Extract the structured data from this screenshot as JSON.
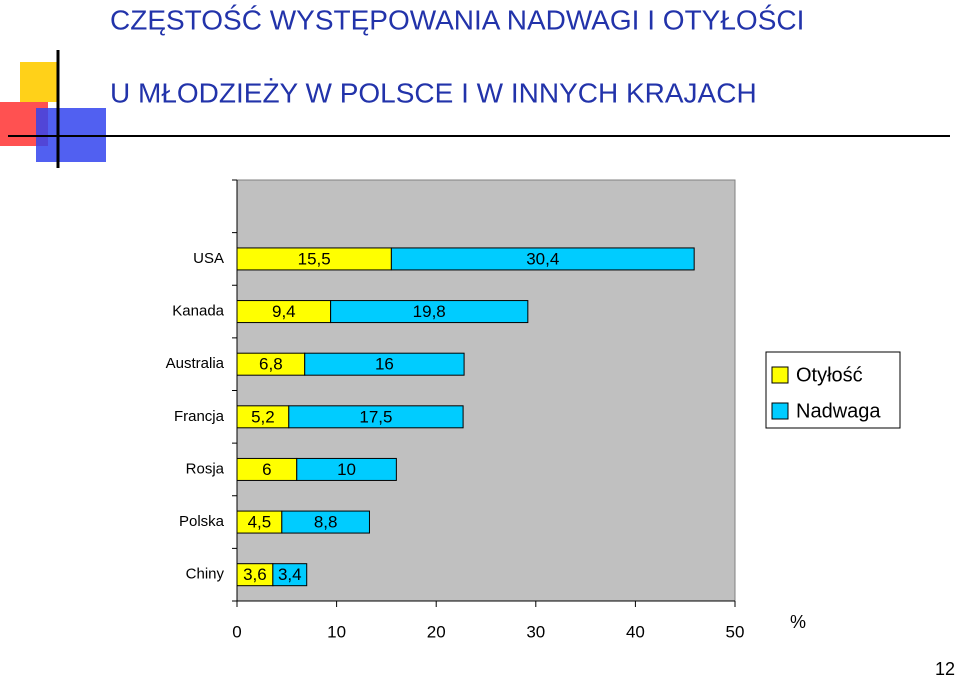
{
  "chart_data": {
    "type": "stacked-barh",
    "title_lines": [
      "CZĘSTOŚĆ WYSTĘPOWANIA NADWAGI I OTYŁOŚCI",
      "U MŁODZIEŻY W POLSCE I W INNYCH KRAJACH"
    ],
    "categories": [
      "USA",
      "Kanada",
      "Australia",
      "Francja",
      "Rosja",
      "Polska",
      "Chiny"
    ],
    "series": [
      {
        "name": "Otyłość",
        "color": "#ffff00",
        "values": [
          15.5,
          9.4,
          6.8,
          5.2,
          6,
          4.5,
          3.6
        ],
        "value_labels": [
          "15,5",
          "9,4",
          "6,8",
          "5,2",
          "6",
          "4,5",
          "3,6"
        ]
      },
      {
        "name": "Nadwaga",
        "color": "#00ccff",
        "values": [
          30.4,
          19.8,
          16,
          17.5,
          10,
          8.8,
          3.4
        ],
        "value_labels": [
          "30,4",
          "19,8",
          "16",
          "17,5",
          "10",
          "8,8",
          "3,4"
        ]
      }
    ],
    "xlim": [
      0,
      50
    ],
    "xticks": [
      0,
      10,
      20,
      30,
      40,
      50
    ],
    "xlabel": "%",
    "legend": "right"
  },
  "slide_number": 12
}
